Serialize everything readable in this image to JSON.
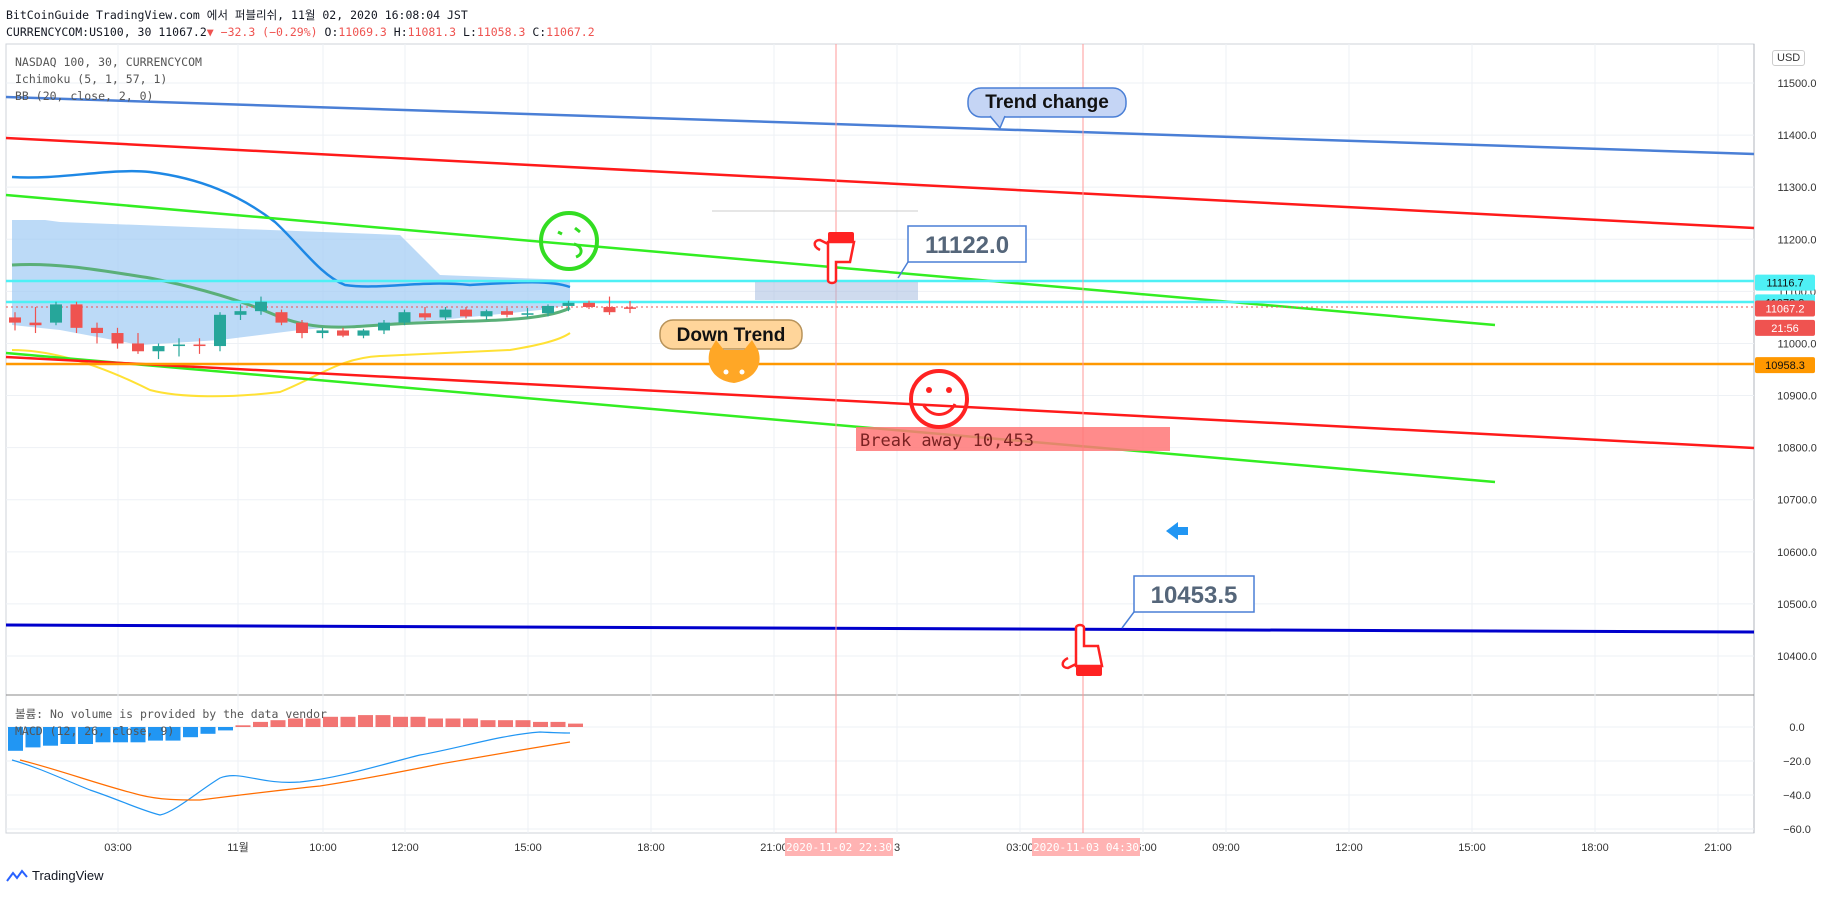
{
  "header": {
    "line1": "BitCoinGuide TradingView.com 에서 퍼블리쉬, 11월 02, 2020 16:08:04 JST",
    "symbol_info": "CURRENCYCOM:US100, 30 11067.2",
    "change": "▼ −32.3 (−0.29%)",
    "o_label": "O:",
    "o_value": "11069.3",
    "h_label": "H:",
    "h_value": "11081.3",
    "l_label": "L:",
    "l_value": "11058.3",
    "c_label": "C:",
    "c_value": "11067.2"
  },
  "legend": {
    "main": "NASDAQ 100, 30, CURRENCYCOM",
    "ichimoku": "Ichimoku (5, 1, 57, 1)",
    "bb": "BB (20, close, 2, 0)",
    "volume": "볼륨: No volume is provided by the data vendor",
    "macd": "MACD (12, 26, close, 9)"
  },
  "currency_button": "USD",
  "footer_brand": "TradingView",
  "colors": {
    "up": "#26a69a",
    "down": "#ef5350",
    "red_line": "#ff1a1a",
    "green_line": "#33ee22",
    "blue_line": "#4a7fd6",
    "navy_line": "#0000cc",
    "orange_line": "#ff9800",
    "cyan_line": "#4ef0f5"
  },
  "chart_data": {
    "type": "candlestick",
    "price_axis": {
      "ticks": [
        "11500.0",
        "11400.0",
        "11300.0",
        "11200.0",
        "11100.0",
        "11000.0",
        "10900.0",
        "10800.0",
        "10700.0",
        "10600.0",
        "10500.0",
        "10400.0"
      ],
      "tick_values": [
        11500,
        11400,
        11300,
        11200,
        11100,
        11000,
        10900,
        10800,
        10700,
        10600,
        10500,
        10400
      ]
    },
    "time_axis": [
      "03:00",
      "11월",
      "10:00",
      "12:00",
      "15:00",
      "18:00",
      "21:00",
      "3",
      "03:00",
      "06:00",
      "09:00",
      "12:00",
      "15:00",
      "18:00",
      "21:00"
    ],
    "price_labels": [
      {
        "text": "11116.7",
        "value": 11116.7,
        "color": "#4ef0f5"
      },
      {
        "text": "11078.9",
        "value": 11078.9,
        "color": "#4ef0f5"
      },
      {
        "text": "11067.2",
        "value": 11067.2,
        "color": "#ef5350"
      },
      {
        "text": "21:56",
        "value": 11030,
        "color": "#ef5350"
      },
      {
        "text": "10958.3",
        "value": 10958.3,
        "color": "#ff9800"
      }
    ],
    "candles": [
      {
        "o": 11050,
        "h": 11060,
        "l": 11025,
        "c": 11040
      },
      {
        "o": 11040,
        "h": 11070,
        "l": 11020,
        "c": 11035
      },
      {
        "o": 11040,
        "h": 11080,
        "l": 11035,
        "c": 11075
      },
      {
        "o": 11075,
        "h": 11080,
        "l": 11020,
        "c": 11030
      },
      {
        "o": 11030,
        "h": 11040,
        "l": 11000,
        "c": 11020
      },
      {
        "o": 11020,
        "h": 11030,
        "l": 10990,
        "c": 11000
      },
      {
        "o": 11000,
        "h": 11020,
        "l": 10980,
        "c": 10985
      },
      {
        "o": 10985,
        "h": 11000,
        "l": 10970,
        "c": 10995
      },
      {
        "o": 10995,
        "h": 11010,
        "l": 10975,
        "c": 10998
      },
      {
        "o": 10998,
        "h": 11010,
        "l": 10980,
        "c": 10995
      },
      {
        "o": 10995,
        "h": 11060,
        "l": 10985,
        "c": 11055
      },
      {
        "o": 11055,
        "h": 11075,
        "l": 11045,
        "c": 11062
      },
      {
        "o": 11062,
        "h": 11090,
        "l": 11055,
        "c": 11080
      },
      {
        "o": 11060,
        "h": 11065,
        "l": 11035,
        "c": 11040
      },
      {
        "o": 11040,
        "h": 11045,
        "l": 11010,
        "c": 11020
      },
      {
        "o": 11020,
        "h": 11030,
        "l": 11010,
        "c": 11025
      },
      {
        "o": 11025,
        "h": 11030,
        "l": 11012,
        "c": 11015
      },
      {
        "o": 11015,
        "h": 11028,
        "l": 11010,
        "c": 11025
      },
      {
        "o": 11025,
        "h": 11045,
        "l": 11018,
        "c": 11040
      },
      {
        "o": 11040,
        "h": 11065,
        "l": 11035,
        "c": 11060
      },
      {
        "o": 11058,
        "h": 11070,
        "l": 11045,
        "c": 11050
      },
      {
        "o": 11050,
        "h": 11070,
        "l": 11045,
        "c": 11065
      },
      {
        "o": 11065,
        "h": 11070,
        "l": 11048,
        "c": 11052
      },
      {
        "o": 11052,
        "h": 11065,
        "l": 11045,
        "c": 11062
      },
      {
        "o": 11062,
        "h": 11068,
        "l": 11050,
        "c": 11055
      },
      {
        "o": 11055,
        "h": 11068,
        "l": 11050,
        "c": 11058
      },
      {
        "o": 11058,
        "h": 11075,
        "l": 11052,
        "c": 11072
      },
      {
        "o": 11072,
        "h": 11082,
        "l": 11062,
        "c": 11078
      },
      {
        "o": 11078,
        "h": 11082,
        "l": 11066,
        "c": 11070
      },
      {
        "o": 11070,
        "h": 11090,
        "l": 11055,
        "c": 11060
      },
      {
        "o": 11069.3,
        "h": 11081.3,
        "l": 11058.3,
        "c": 11067.2
      }
    ],
    "annotations": [
      {
        "text": "Trend change",
        "kind": "callout"
      },
      {
        "text": "11122.0",
        "kind": "price-callout"
      },
      {
        "text": "Down Trend",
        "kind": "callout"
      },
      {
        "text": "Break away 10,453",
        "kind": "label"
      },
      {
        "text": "10453.5",
        "kind": "price-callout"
      },
      {
        "text": "2020-11-02  22:30",
        "kind": "time-marker"
      },
      {
        "text": "2020-11-03  04:30",
        "kind": "time-marker"
      }
    ],
    "macd_axis": {
      "ticks": [
        "0.0",
        "−20.0",
        "−40.0",
        "−60.0"
      ],
      "tick_values": [
        0,
        -20,
        -40,
        -60
      ]
    },
    "macd_histogram": [
      -14,
      -12,
      -11,
      -10,
      -10,
      -9,
      -9,
      -9,
      -8,
      -8,
      -6,
      -4,
      -2,
      1,
      3,
      4,
      5,
      5,
      6,
      6,
      7,
      7,
      6,
      6,
      5,
      5,
      5,
      4,
      4,
      4,
      3,
      3,
      2
    ]
  }
}
